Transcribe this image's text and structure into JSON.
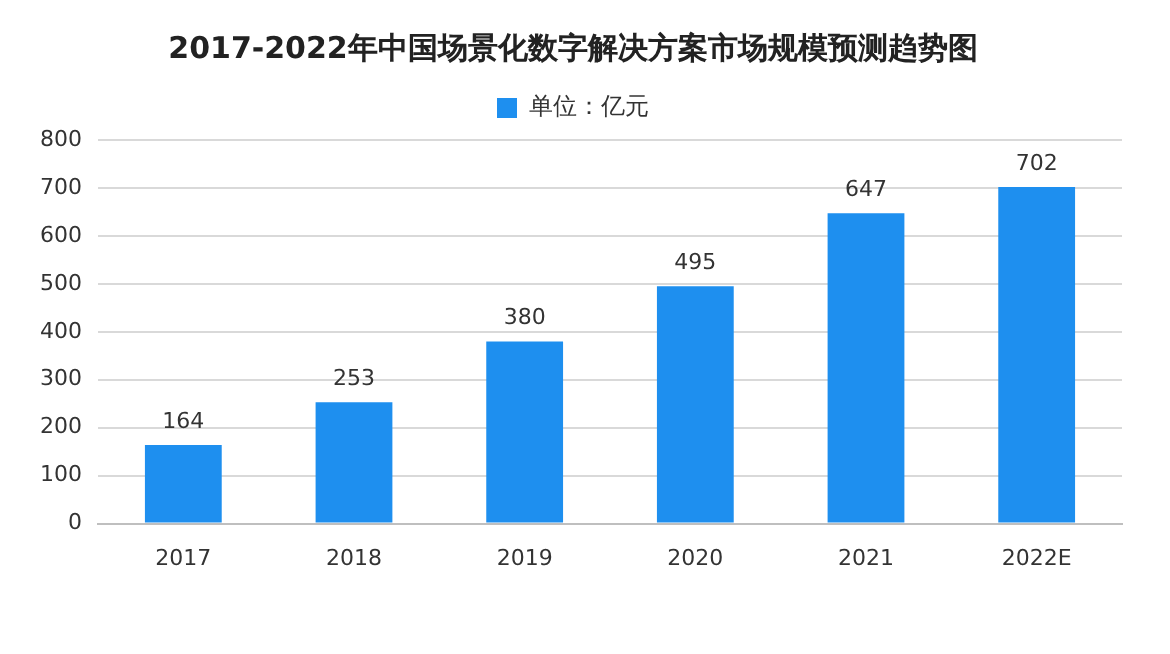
{
  "chart_data": {
    "type": "bar",
    "title": "2017-2022年中国场景化数字解决方案市场规模预测趋势图",
    "categories": [
      "2017",
      "2018",
      "2019",
      "2020",
      "2021",
      "2022E"
    ],
    "series": [
      {
        "name": "单位：亿元",
        "color": "#1e8fef",
        "values": [
          164,
          253,
          380,
          495,
          647,
          702
        ]
      }
    ],
    "ylim": [
      0,
      800
    ],
    "yticks": [
      0,
      100,
      200,
      300,
      400,
      500,
      600,
      700,
      800
    ],
    "grid": "y",
    "legend": "top",
    "data_labels": true
  }
}
